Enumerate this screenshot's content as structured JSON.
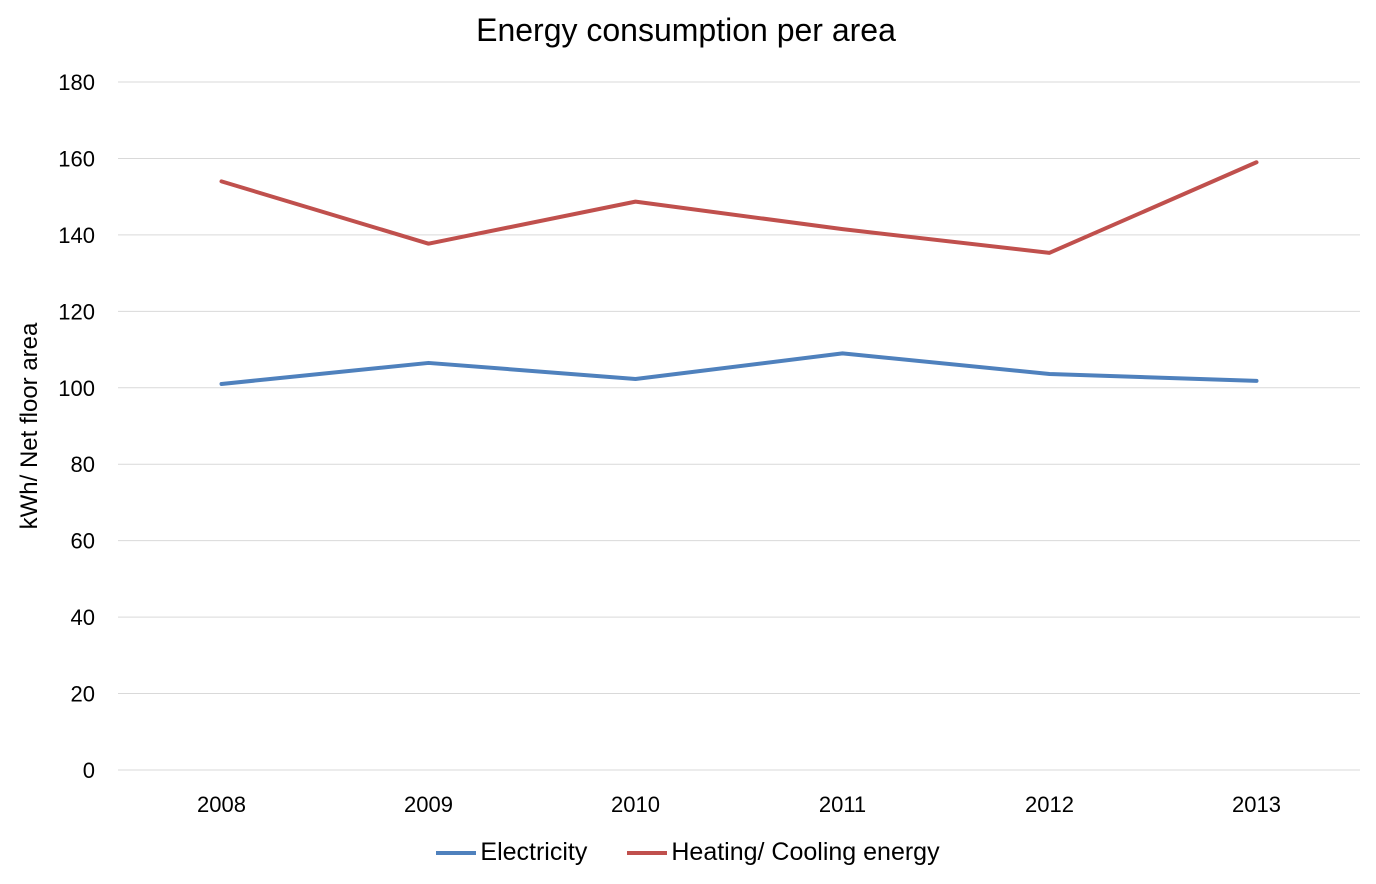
{
  "chart_data": {
    "type": "line",
    "title": "Energy consumption per area",
    "xlabel": "",
    "ylabel": "kWh/ Net floor area",
    "categories": [
      "2008",
      "2009",
      "2010",
      "2011",
      "2012",
      "2013"
    ],
    "ylim": [
      0,
      180
    ],
    "yticks": [
      "0",
      "20",
      "40",
      "60",
      "80",
      "100",
      "120",
      "140",
      "160",
      "180"
    ],
    "grid": true,
    "legend_position": "bottom",
    "series": [
      {
        "name": "Electricity",
        "color": "#4f81bd",
        "values": [
          101,
          106.5,
          102.3,
          109,
          103.6,
          101.8
        ]
      },
      {
        "name": "Heating/ Cooling energy",
        "color": "#c0504d",
        "values": [
          154,
          137.7,
          148.7,
          141.5,
          135.3,
          159
        ]
      }
    ]
  }
}
